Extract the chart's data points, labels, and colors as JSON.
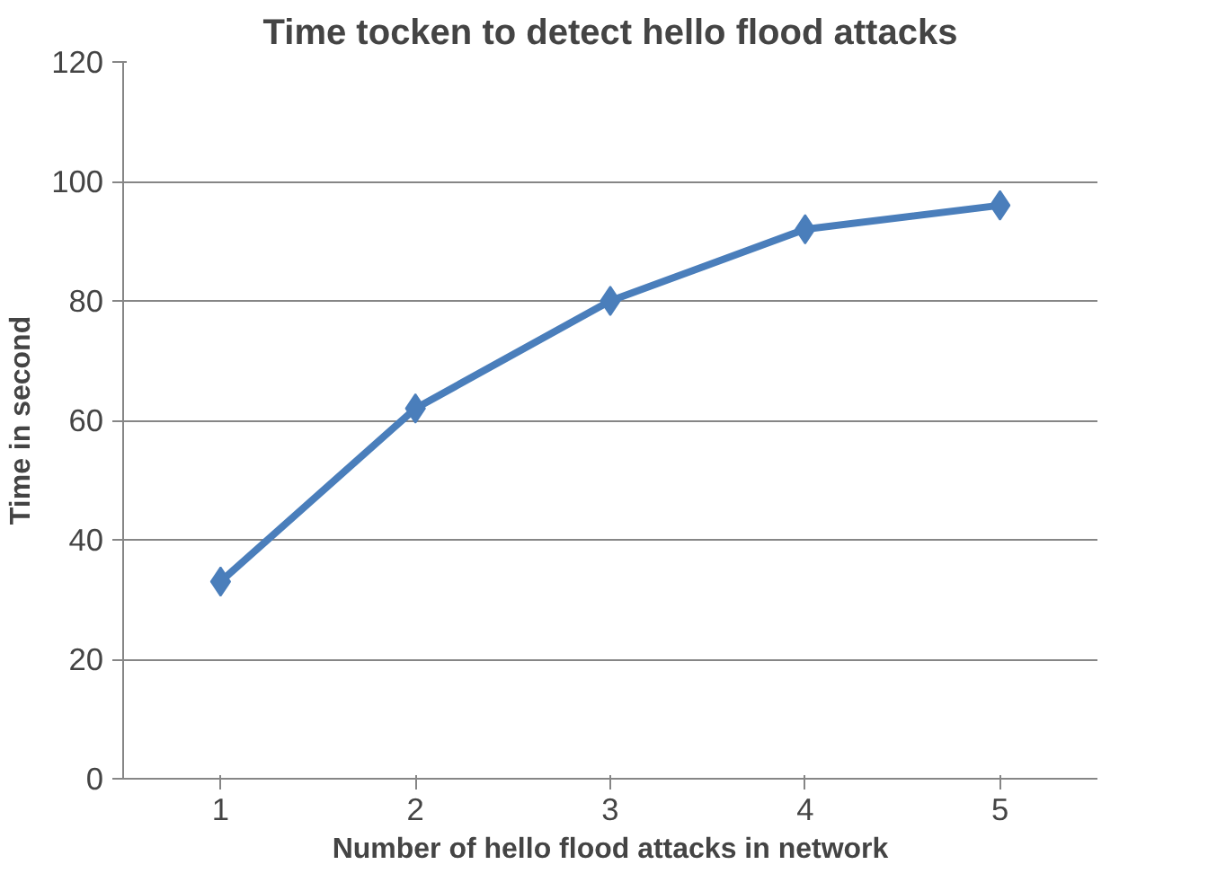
{
  "chart_data": {
    "type": "line",
    "title": "Time tocken to detect hello flood attacks",
    "xlabel": "Number of hello flood attacks in network",
    "ylabel": "Time in second",
    "categories": [
      "1",
      "2",
      "3",
      "4",
      "5"
    ],
    "series": [
      {
        "color": "#4a7ebb",
        "values": [
          33,
          62,
          80,
          92,
          96
        ]
      }
    ],
    "ylim": [
      0,
      120
    ],
    "yticks": [
      0,
      20,
      40,
      60,
      80,
      100,
      120
    ],
    "grid": "y",
    "marker": "diamond",
    "line_style": "solid"
  }
}
